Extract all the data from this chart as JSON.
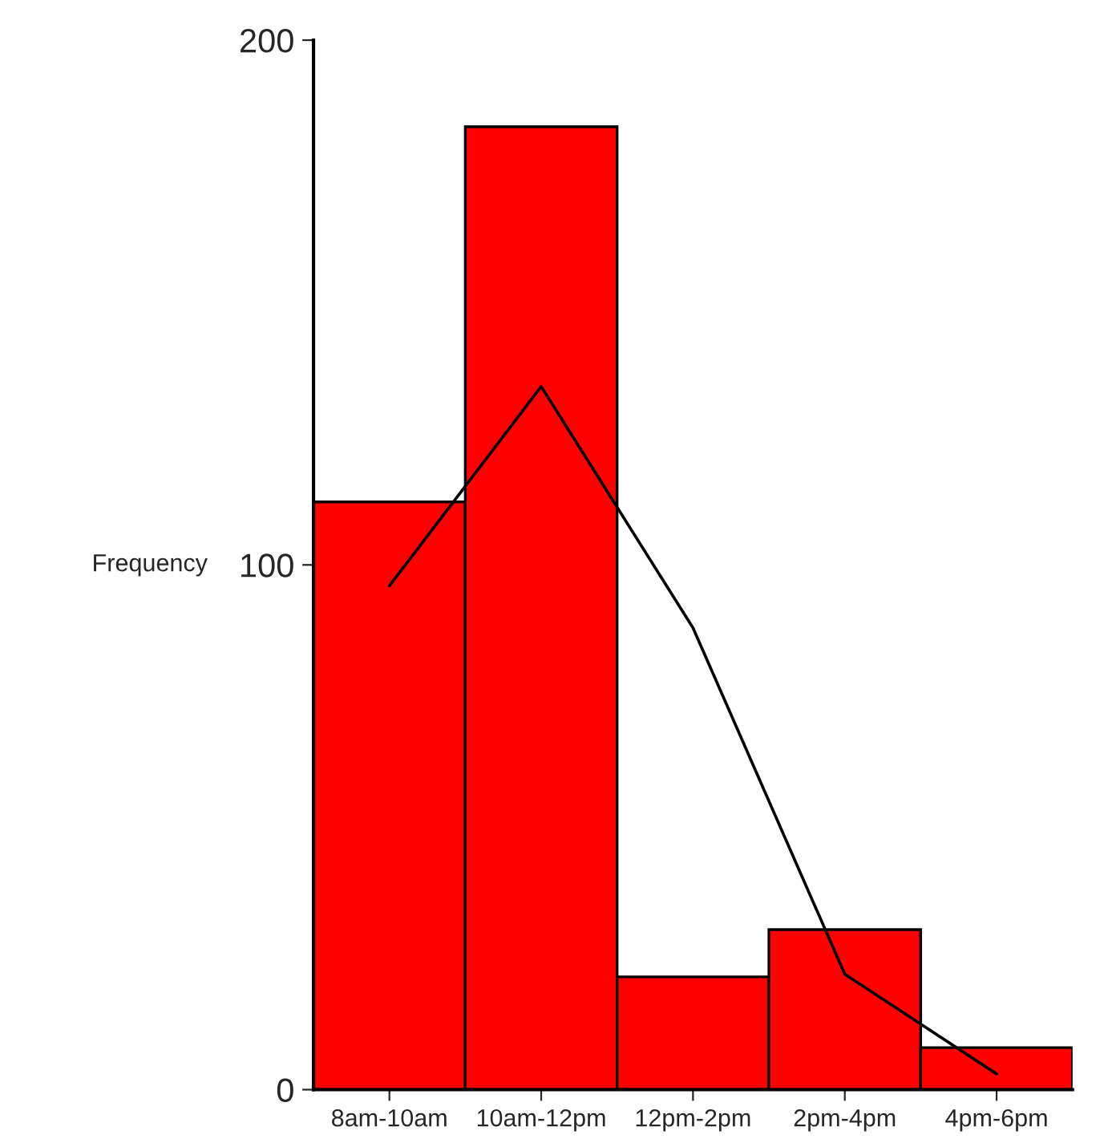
{
  "chart_data": {
    "type": "bar",
    "ylabel": "Frequency",
    "categories": [
      "8am-10am",
      "10am-12pm",
      "12pm-2pm",
      "2pm-4pm",
      "4pm-6pm"
    ],
    "values": [
      112,
      183.5,
      21.5,
      30.5,
      8
    ],
    "color": "#ff0000",
    "ylim": [
      0,
      200
    ],
    "yticks": [
      0,
      100,
      200
    ],
    "series": [
      {
        "type": "line",
        "color": "#000000",
        "values": [
          96,
          134,
          88,
          22,
          3
        ]
      }
    ],
    "grid": false
  }
}
